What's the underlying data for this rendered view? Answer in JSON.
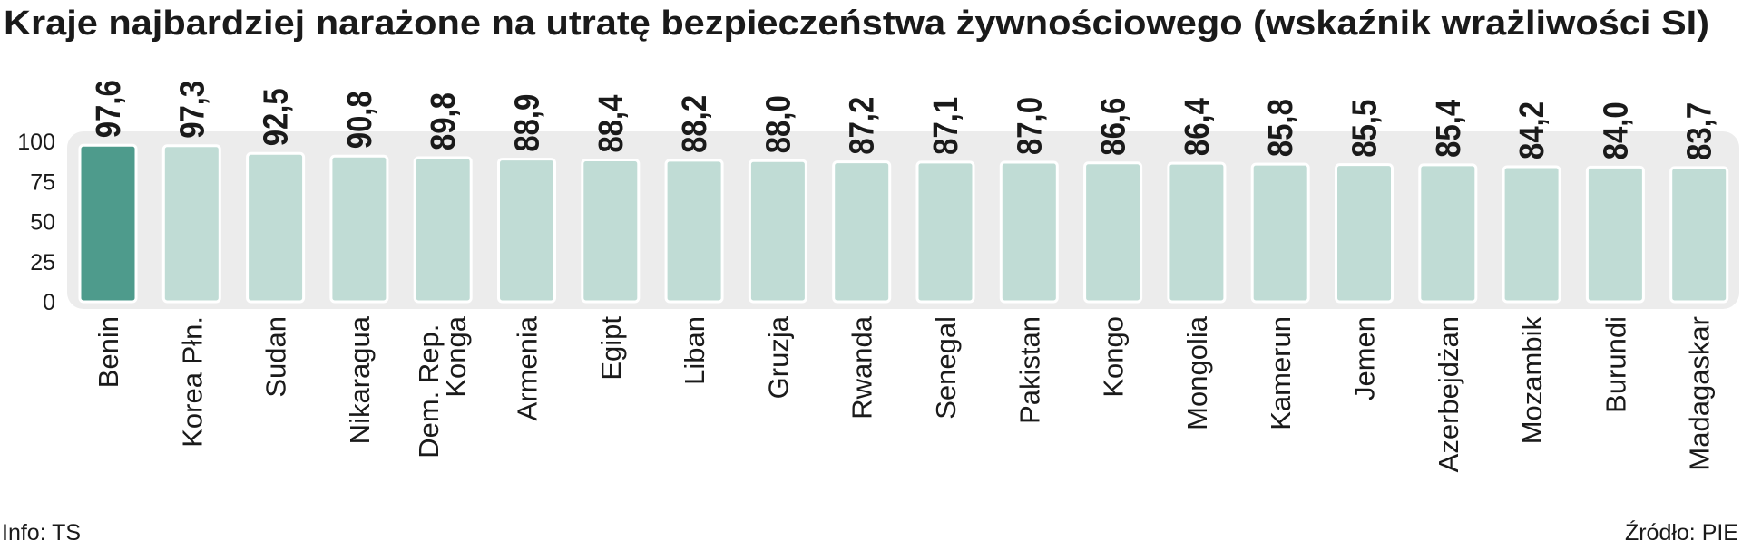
{
  "chart_data": {
    "type": "bar",
    "title": "Kraje najbardziej narażone na utratę bezpieczeństwa żywnościowego (wskaźnik wrażliwości SI)",
    "categories": [
      "Benin",
      "Korea Płn.",
      "Sudan",
      "Nikaragua",
      "Dem. Rep. Konga",
      "Armenia",
      "Egipt",
      "Liban",
      "Gruzja",
      "Rwanda",
      "Senegal",
      "Pakistan",
      "Kongo",
      "Mongolia",
      "Kamerun",
      "Jemen",
      "Azerbejdżan",
      "Mozambik",
      "Burundi",
      "Madagaskar"
    ],
    "values": [
      97.6,
      97.3,
      92.5,
      90.8,
      89.8,
      88.9,
      88.4,
      88.2,
      88.0,
      87.2,
      87.1,
      87.0,
      86.6,
      86.4,
      85.8,
      85.5,
      85.4,
      84.2,
      84.0,
      83.7
    ],
    "value_labels": [
      "97,6",
      "97,3",
      "92,5",
      "90,8",
      "89,8",
      "88,9",
      "88,4",
      "88,2",
      "88,0",
      "87,2",
      "87,1",
      "87,0",
      "86,6",
      "86,4",
      "85,8",
      "85,5",
      "85,4",
      "84,2",
      "84,0",
      "83,7"
    ],
    "colors": [
      "#4e9b8c",
      "#c0dcd5",
      "#c0dcd5",
      "#c0dcd5",
      "#c0dcd5",
      "#c0dcd5",
      "#c0dcd5",
      "#c0dcd5",
      "#c0dcd5",
      "#c0dcd5",
      "#c0dcd5",
      "#c0dcd5",
      "#c0dcd5",
      "#c0dcd5",
      "#c0dcd5",
      "#c0dcd5",
      "#c0dcd5",
      "#c0dcd5",
      "#c0dcd5",
      "#c0dcd5"
    ],
    "ylim": [
      0,
      100
    ],
    "yticks": [
      0,
      25,
      50,
      75,
      100
    ],
    "note": "Info: TS",
    "source": "Źródło: PIE"
  }
}
